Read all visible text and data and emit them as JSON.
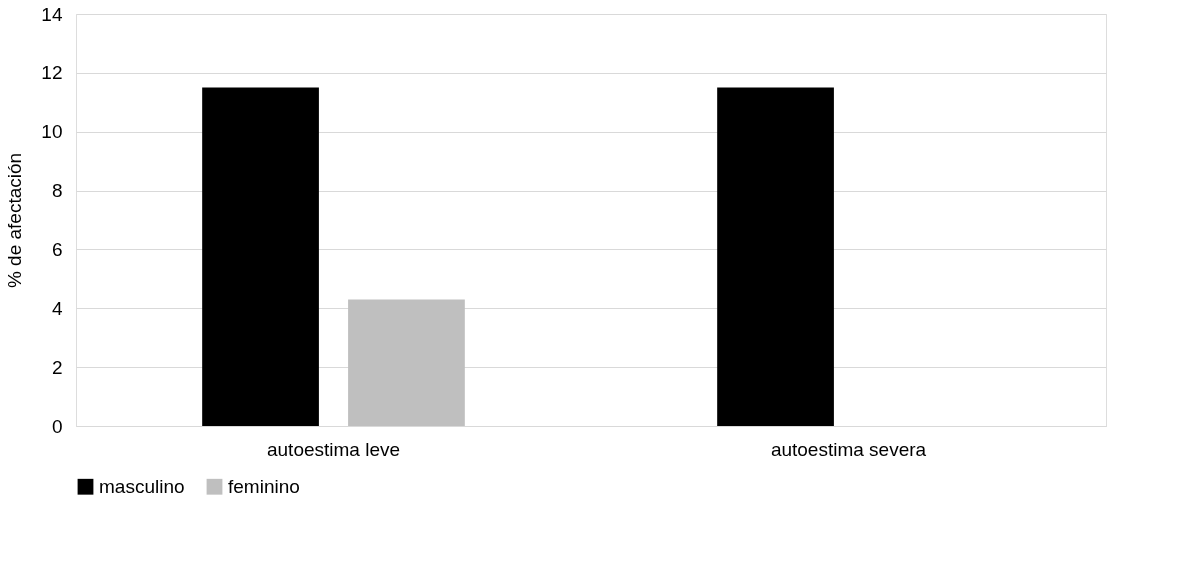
{
  "chart_data": {
    "type": "bar",
    "ylabel": "% de afectación",
    "categories": [
      "autoestima leve",
      "autoestima severa"
    ],
    "series": [
      {
        "name": "masculino",
        "color": "#000000",
        "values": [
          11.5,
          11.5
        ]
      },
      {
        "name": "feminino",
        "color": "#bfbfbf",
        "values": [
          4.3,
          0
        ]
      }
    ],
    "ylim": [
      0,
      14
    ],
    "yticks": [
      0,
      2,
      4,
      6,
      8,
      10,
      12,
      14
    ],
    "grid": "y",
    "legend": "bottom"
  }
}
